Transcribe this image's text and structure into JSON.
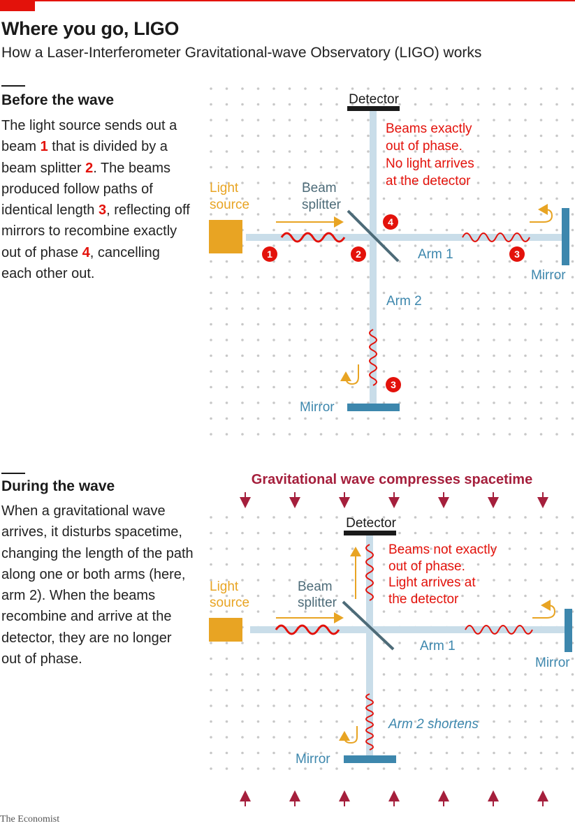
{
  "header": {
    "title": "Where you go, LIGO",
    "subtitle": "How a Laser-Interferometer Gravitational-wave Observatory (LIGO) works"
  },
  "before": {
    "heading": "Before the wave",
    "body": [
      {
        "t": "The light source sends out a beam "
      },
      {
        "t": "1",
        "num": true
      },
      {
        "t": " that is divided by a beam splitter "
      },
      {
        "t": "2",
        "num": true
      },
      {
        "t": ". The beams produced follow paths of identical length "
      },
      {
        "t": "3",
        "num": true
      },
      {
        "t": ", reflecting off mirrors to recombine exactly out of phase "
      },
      {
        "t": "4",
        "num": true
      },
      {
        "t": ", cancelling each other out."
      }
    ],
    "labels": {
      "detector": "Detector",
      "light_source": [
        "Light",
        "source"
      ],
      "beam_splitter": [
        "Beam",
        "splitter"
      ],
      "arm1": "Arm 1",
      "arm2": "Arm 2",
      "mirror_right": "Mirror",
      "mirror_bottom": "Mirror",
      "note": [
        "Beams exactly",
        "out of phase.",
        "No light arrives",
        "at the detector"
      ]
    },
    "markers": [
      "1",
      "2",
      "3",
      "3",
      "4"
    ]
  },
  "during": {
    "heading": "During the wave",
    "body": [
      {
        "t": "When a gravitational wave arrives, it disturbs spacetime, changing the length of the path along one or both arms (here, arm 2). When the beams recombine and arrive at the detector, they are no longer out of phase."
      }
    ],
    "wave_label": "Gravitational wave compresses spacetime",
    "labels": {
      "detector": "Detector",
      "light_source": [
        "Light",
        "source"
      ],
      "beam_splitter": [
        "Beam",
        "splitter"
      ],
      "arm1": "Arm 1",
      "arm2_note": "Arm 2 shortens",
      "mirror_right": "Mirror",
      "mirror_bottom": "Mirror",
      "note": [
        "Beams not exactly",
        "out of phase.",
        "Light arrives at",
        "the detector"
      ]
    }
  },
  "footer": {
    "credit": "The Economist"
  },
  "colors": {
    "red": "#e3120b",
    "beam": "#c9dde9",
    "mirror": "#3d87ad",
    "source": "#e8a423",
    "splitter": "#4d6b78",
    "wave_label": "#a51f3c",
    "dot": "#c8c8c8"
  }
}
